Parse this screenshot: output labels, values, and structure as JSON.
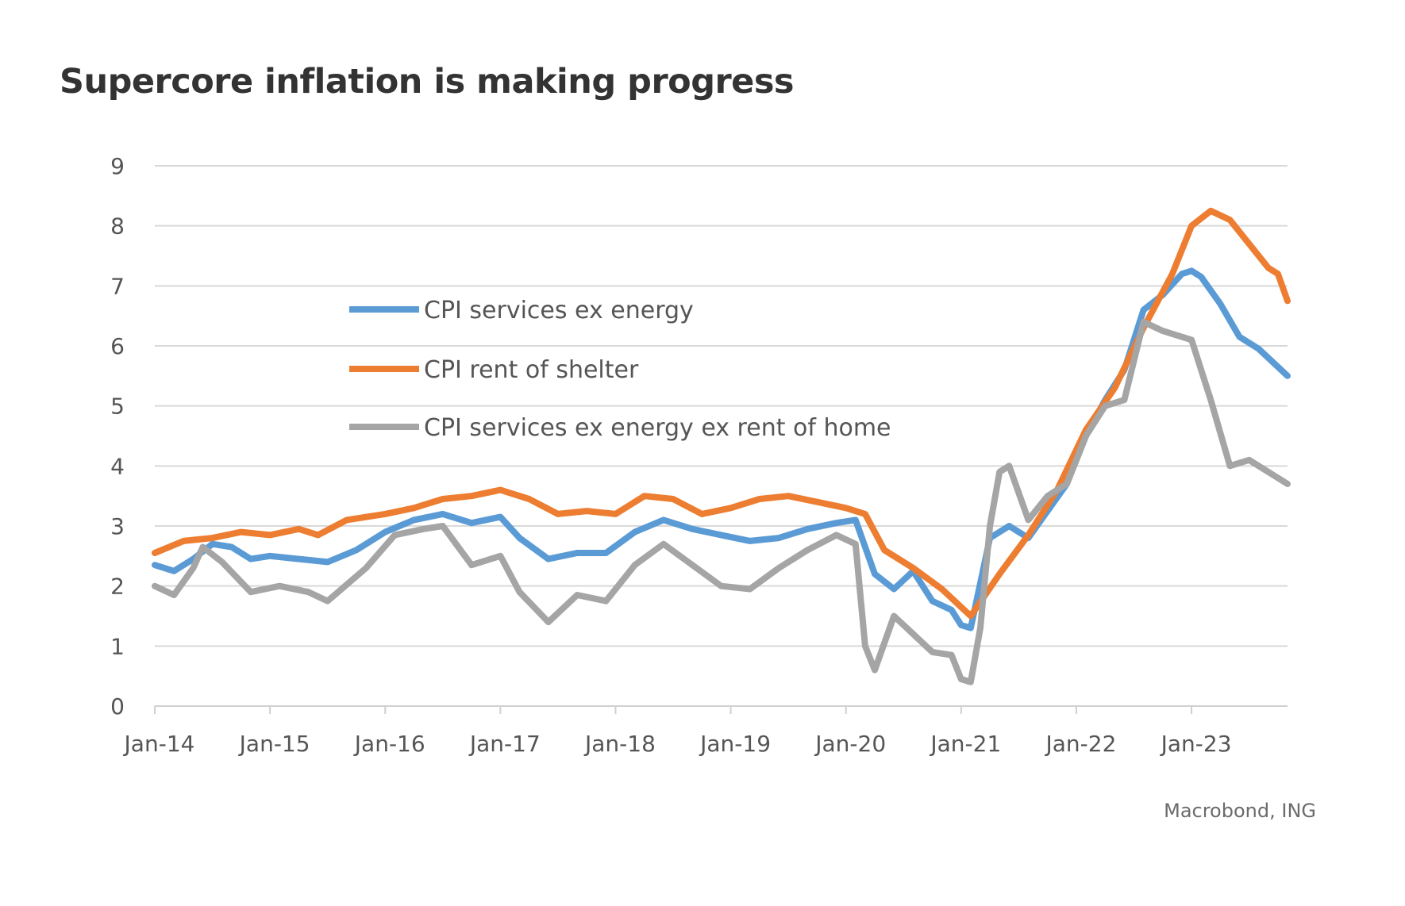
{
  "chart_data": {
    "type": "line",
    "title": "Supercore inflation is making progress",
    "source": "Macrobond, ING",
    "xlabel": "",
    "ylabel": "",
    "ylim": [
      0,
      9
    ],
    "yticks": [
      0,
      1,
      2,
      3,
      4,
      5,
      6,
      7,
      8,
      9
    ],
    "xlim": [
      "2014-01",
      "2023-11"
    ],
    "xticks": [
      "Jan-14",
      "Jan-15",
      "Jan-16",
      "Jan-17",
      "Jan-18",
      "Jan-19",
      "Jan-20",
      "Jan-21",
      "Jan-22",
      "Jan-23"
    ],
    "grid": "horizontal",
    "legend_position": "upper-left, inside plot",
    "series": [
      {
        "name": "CPI services ex energy",
        "color": "#5B9BD5",
        "points": [
          [
            "2014-01",
            2.35
          ],
          [
            "2014-03",
            2.25
          ],
          [
            "2014-05",
            2.45
          ],
          [
            "2014-07",
            2.7
          ],
          [
            "2014-09",
            2.65
          ],
          [
            "2014-11",
            2.45
          ],
          [
            "2015-01",
            2.5
          ],
          [
            "2015-04",
            2.45
          ],
          [
            "2015-07",
            2.4
          ],
          [
            "2015-10",
            2.6
          ],
          [
            "2016-01",
            2.9
          ],
          [
            "2016-04",
            3.1
          ],
          [
            "2016-07",
            3.2
          ],
          [
            "2016-10",
            3.05
          ],
          [
            "2017-01",
            3.15
          ],
          [
            "2017-03",
            2.8
          ],
          [
            "2017-06",
            2.45
          ],
          [
            "2017-09",
            2.55
          ],
          [
            "2017-12",
            2.55
          ],
          [
            "2018-03",
            2.9
          ],
          [
            "2018-06",
            3.1
          ],
          [
            "2018-09",
            2.95
          ],
          [
            "2018-12",
            2.85
          ],
          [
            "2019-03",
            2.75
          ],
          [
            "2019-06",
            2.8
          ],
          [
            "2019-09",
            2.95
          ],
          [
            "2019-12",
            3.05
          ],
          [
            "2020-02",
            3.1
          ],
          [
            "2020-04",
            2.2
          ],
          [
            "2020-06",
            1.95
          ],
          [
            "2020-08",
            2.25
          ],
          [
            "2020-10",
            1.75
          ],
          [
            "2020-12",
            1.6
          ],
          [
            "2021-01",
            1.35
          ],
          [
            "2021-02",
            1.3
          ],
          [
            "2021-04",
            2.8
          ],
          [
            "2021-06",
            3.0
          ],
          [
            "2021-08",
            2.8
          ],
          [
            "2021-10",
            3.25
          ],
          [
            "2021-12",
            3.7
          ],
          [
            "2022-02",
            4.5
          ],
          [
            "2022-04",
            5.1
          ],
          [
            "2022-06",
            5.6
          ],
          [
            "2022-08",
            6.6
          ],
          [
            "2022-10",
            6.85
          ],
          [
            "2022-12",
            7.2
          ],
          [
            "2023-01",
            7.25
          ],
          [
            "2023-02",
            7.15
          ],
          [
            "2023-04",
            6.7
          ],
          [
            "2023-06",
            6.15
          ],
          [
            "2023-08",
            5.95
          ],
          [
            "2023-11",
            5.5
          ]
        ]
      },
      {
        "name": "CPI rent of shelter",
        "color": "#ED7D31",
        "points": [
          [
            "2014-01",
            2.55
          ],
          [
            "2014-04",
            2.75
          ],
          [
            "2014-07",
            2.8
          ],
          [
            "2014-10",
            2.9
          ],
          [
            "2015-01",
            2.85
          ],
          [
            "2015-04",
            2.95
          ],
          [
            "2015-06",
            2.85
          ],
          [
            "2015-09",
            3.1
          ],
          [
            "2016-01",
            3.2
          ],
          [
            "2016-04",
            3.3
          ],
          [
            "2016-07",
            3.45
          ],
          [
            "2016-10",
            3.5
          ],
          [
            "2017-01",
            3.6
          ],
          [
            "2017-04",
            3.45
          ],
          [
            "2017-07",
            3.2
          ],
          [
            "2017-10",
            3.25
          ],
          [
            "2018-01",
            3.2
          ],
          [
            "2018-04",
            3.5
          ],
          [
            "2018-07",
            3.45
          ],
          [
            "2018-10",
            3.2
          ],
          [
            "2019-01",
            3.3
          ],
          [
            "2019-04",
            3.45
          ],
          [
            "2019-07",
            3.5
          ],
          [
            "2019-10",
            3.4
          ],
          [
            "2020-01",
            3.3
          ],
          [
            "2020-03",
            3.2
          ],
          [
            "2020-05",
            2.6
          ],
          [
            "2020-08",
            2.3
          ],
          [
            "2020-11",
            1.95
          ],
          [
            "2021-02",
            1.5
          ],
          [
            "2021-05",
            2.2
          ],
          [
            "2021-08",
            2.85
          ],
          [
            "2021-11",
            3.6
          ],
          [
            "2022-02",
            4.6
          ],
          [
            "2022-05",
            5.3
          ],
          [
            "2022-08",
            6.3
          ],
          [
            "2022-11",
            7.2
          ],
          [
            "2023-01",
            8.0
          ],
          [
            "2023-03",
            8.25
          ],
          [
            "2023-05",
            8.1
          ],
          [
            "2023-07",
            7.7
          ],
          [
            "2023-09",
            7.3
          ],
          [
            "2023-10",
            7.2
          ],
          [
            "2023-11",
            6.75
          ]
        ]
      },
      {
        "name": "CPI services ex energy ex rent of home",
        "color": "#A5A5A5",
        "points": [
          [
            "2014-01",
            2.0
          ],
          [
            "2014-03",
            1.85
          ],
          [
            "2014-05",
            2.3
          ],
          [
            "2014-06",
            2.65
          ],
          [
            "2014-08",
            2.4
          ],
          [
            "2014-11",
            1.9
          ],
          [
            "2015-02",
            2.0
          ],
          [
            "2015-05",
            1.9
          ],
          [
            "2015-07",
            1.75
          ],
          [
            "2015-11",
            2.3
          ],
          [
            "2016-02",
            2.85
          ],
          [
            "2016-05",
            2.95
          ],
          [
            "2016-07",
            3.0
          ],
          [
            "2016-10",
            2.35
          ],
          [
            "2017-01",
            2.5
          ],
          [
            "2017-03",
            1.9
          ],
          [
            "2017-06",
            1.4
          ],
          [
            "2017-09",
            1.85
          ],
          [
            "2017-12",
            1.75
          ],
          [
            "2018-03",
            2.35
          ],
          [
            "2018-06",
            2.7
          ],
          [
            "2018-09",
            2.35
          ],
          [
            "2018-12",
            2.0
          ],
          [
            "2019-03",
            1.95
          ],
          [
            "2019-06",
            2.3
          ],
          [
            "2019-09",
            2.6
          ],
          [
            "2019-12",
            2.85
          ],
          [
            "2020-02",
            2.7
          ],
          [
            "2020-03",
            1.0
          ],
          [
            "2020-04",
            0.6
          ],
          [
            "2020-06",
            1.5
          ],
          [
            "2020-08",
            1.2
          ],
          [
            "2020-10",
            0.9
          ],
          [
            "2020-12",
            0.85
          ],
          [
            "2021-01",
            0.45
          ],
          [
            "2021-02",
            0.4
          ],
          [
            "2021-03",
            1.3
          ],
          [
            "2021-04",
            3.0
          ],
          [
            "2021-05",
            3.9
          ],
          [
            "2021-06",
            4.0
          ],
          [
            "2021-08",
            3.1
          ],
          [
            "2021-10",
            3.5
          ],
          [
            "2021-12",
            3.7
          ],
          [
            "2022-02",
            4.5
          ],
          [
            "2022-04",
            5.0
          ],
          [
            "2022-06",
            5.1
          ],
          [
            "2022-08",
            6.4
          ],
          [
            "2022-10",
            6.25
          ],
          [
            "2023-01",
            6.1
          ],
          [
            "2023-03",
            5.1
          ],
          [
            "2023-05",
            4.0
          ],
          [
            "2023-07",
            4.1
          ],
          [
            "2023-09",
            3.9
          ],
          [
            "2023-11",
            3.7
          ]
        ]
      }
    ]
  }
}
